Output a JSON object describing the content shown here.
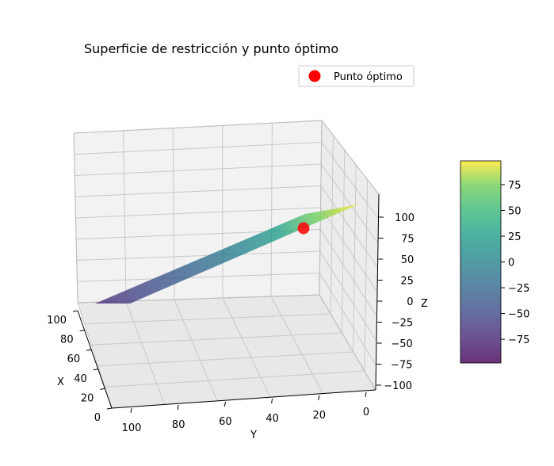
{
  "chart_data": {
    "type": "surface3d",
    "title": "Superficie de restricción y punto óptimo",
    "xlabel": "X",
    "ylabel": "Y",
    "zlabel": "Z",
    "xlim": [
      0,
      100
    ],
    "ylim": [
      0,
      100
    ],
    "zlim": [
      -100,
      100
    ],
    "x_ticks": [
      "0",
      "20",
      "40",
      "60",
      "80",
      "100"
    ],
    "y_ticks": [
      "0",
      "20",
      "40",
      "60",
      "80",
      "100"
    ],
    "z_ticks": [
      "−100",
      "−75",
      "−50",
      "−25",
      "0",
      "25",
      "50",
      "75",
      "100"
    ],
    "surface": {
      "name": "",
      "z_at_corner_x0_y100": -95,
      "z_at_corner_x100_y0": 95,
      "colormap": "viridis"
    },
    "optimal_point": {
      "name": "Punto óptimo",
      "color": "#ff0000"
    },
    "legend": {
      "position": "top-right",
      "entries": [
        "Punto óptimo"
      ]
    },
    "colorbar": {
      "ticks": [
        "−75",
        "−50",
        "−25",
        "0",
        "25",
        "50",
        "75"
      ],
      "tick_values": [
        -75,
        -50,
        -25,
        0,
        25,
        50,
        75
      ],
      "range": [
        -98,
        98
      ]
    },
    "grid": true
  }
}
